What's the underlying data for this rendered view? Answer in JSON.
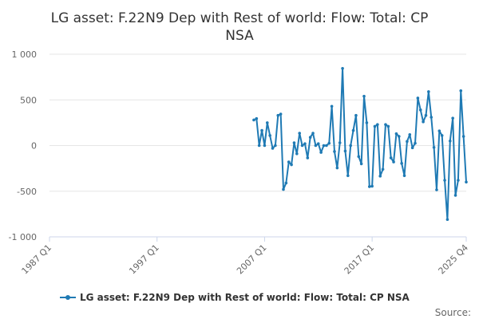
{
  "colors": {
    "series": "#1f7ab4",
    "grid": "#e6e6e6",
    "axis": "#ccd6eb",
    "text": "#333333",
    "muted": "#666666"
  },
  "source_label": "Source:",
  "chart_data": {
    "type": "line",
    "title_lines": [
      "LG asset: F.22N9 Dep with Rest of world: Flow: Total: CP",
      "NSA"
    ],
    "x_axis": {
      "type": "quarterly",
      "start": "1987 Q1",
      "end": "2025 Q4",
      "tick_labels": [
        "1987 Q1",
        "1997 Q1",
        "2007 Q1",
        "2017 Q1",
        "2025 Q4"
      ]
    },
    "y_axis": {
      "min": -1000,
      "max": 1000,
      "tick_values": [
        1000,
        500,
        0,
        -500,
        -1000
      ],
      "tick_labels": [
        "1 000",
        "500",
        "0",
        "-500",
        "-1 000"
      ]
    },
    "grid": true,
    "legend": {
      "position": "bottom-center"
    },
    "series": [
      {
        "name": "LG asset: F.22N9 Dep with Rest of world: Flow: Total: CP NSA",
        "start_period": "2006 Q1",
        "values": [
          280,
          295,
          0,
          165,
          0,
          250,
          110,
          -30,
          0,
          330,
          345,
          -480,
          -410,
          -180,
          -210,
          30,
          -90,
          135,
          0,
          20,
          -135,
          90,
          135,
          0,
          20,
          -75,
          0,
          0,
          25,
          430,
          -65,
          -245,
          30,
          845,
          -60,
          -330,
          0,
          165,
          330,
          -120,
          -200,
          540,
          250,
          -450,
          -445,
          210,
          230,
          -335,
          -260,
          230,
          210,
          -135,
          -180,
          130,
          100,
          -195,
          -330,
          45,
          120,
          -25,
          25,
          520,
          390,
          260,
          330,
          590,
          310,
          -20,
          -485,
          160,
          110,
          -380,
          -810,
          50,
          300,
          -545,
          -380,
          600,
          100,
          -400
        ]
      }
    ]
  }
}
